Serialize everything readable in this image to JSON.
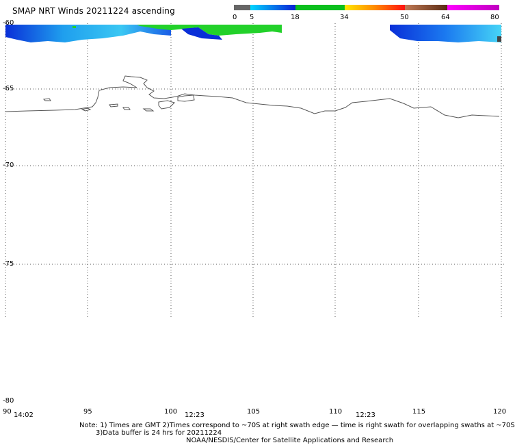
{
  "title": "SMAP NRT Winds 20211224 ascending",
  "legend": {
    "ticks": [
      "0",
      "5",
      "18",
      "34",
      "50",
      "64",
      "80"
    ],
    "colors": [
      {
        "range": "0-5",
        "hex": "#6e6e6e"
      },
      {
        "range": "5-18",
        "hex": "#1aa6f5"
      },
      {
        "range": "18-34",
        "hex": "#0bbf1d"
      },
      {
        "range": "34-50",
        "hex": "#f04a14"
      },
      {
        "range": "50-64",
        "hex": "#9a5a3a"
      },
      {
        "range": "64-80",
        "hex": "#d23adc"
      }
    ]
  },
  "lat_labels": [
    "-60",
    "-65",
    "-70",
    "-75",
    "-80"
  ],
  "lon_labels": [
    "90",
    "95",
    "100",
    "105",
    "110",
    "115",
    "120"
  ],
  "time_labels": [
    "14:02",
    "12:23",
    "12:23"
  ],
  "notes": {
    "line1": "Note: 1) Times are GMT 2)Times correspond to ~70S at right swath edge — time is right swath for overlapping swaths at ~70S",
    "line2": "3)Data buffer is 24 hrs for 20211224",
    "line3": "NOAA/NESDIS/Center for Satellite Applications and Research"
  },
  "colors": {
    "coast": "#555555",
    "grid": "#555555",
    "wind_blue": "#1a5de6",
    "wind_green": "#22d12a"
  }
}
